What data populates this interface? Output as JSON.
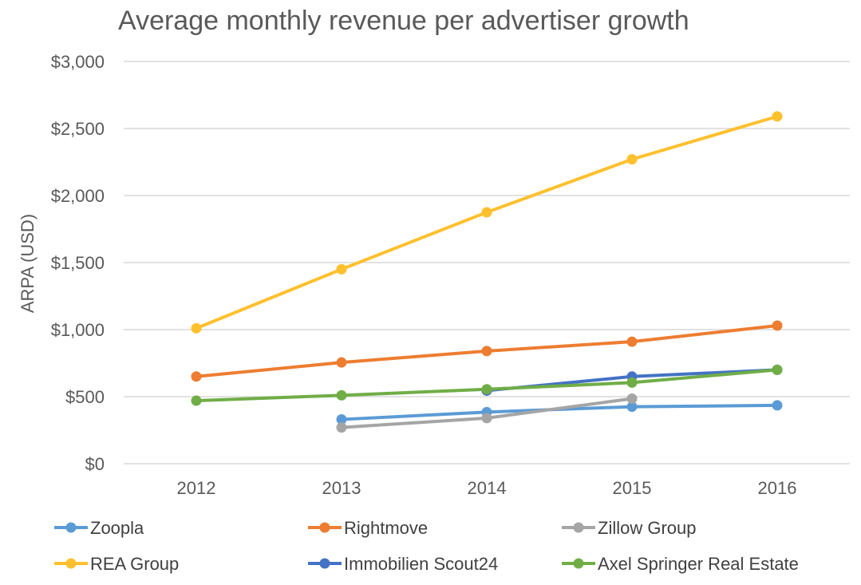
{
  "chart_data": {
    "type": "line",
    "title": "Average monthly revenue per advertiser growth",
    "xlabel": "",
    "ylabel": "ARPA (USD)",
    "categories": [
      "2012",
      "2013",
      "2014",
      "2015",
      "2016"
    ],
    "ylim": [
      0,
      3000
    ],
    "yticks": [
      0,
      500,
      1000,
      1500,
      2000,
      2500,
      3000
    ],
    "ytick_labels": [
      "$0",
      "$500",
      "$1,000",
      "$1,500",
      "$2,000",
      "$2,500",
      "$3,000"
    ],
    "grid": true,
    "legend_position": "bottom",
    "series": [
      {
        "name": "Zoopla",
        "color": "#5b9bd5",
        "values": [
          null,
          330,
          385,
          425,
          435
        ]
      },
      {
        "name": "Rightmove",
        "color": "#ed7d31",
        "values": [
          650,
          755,
          840,
          910,
          1030
        ]
      },
      {
        "name": "Zillow Group",
        "color": "#a5a5a5",
        "values": [
          null,
          270,
          340,
          485,
          null
        ]
      },
      {
        "name": "REA Group",
        "color": "#ffc02d",
        "values": [
          1010,
          1450,
          1875,
          2270,
          2590
        ]
      },
      {
        "name": "Immobilien Scout24",
        "color": "#4472c4",
        "values": [
          null,
          null,
          545,
          650,
          700
        ]
      },
      {
        "name": "Axel Springer Real Estate",
        "color": "#70ad47",
        "values": [
          470,
          510,
          555,
          605,
          700
        ]
      }
    ]
  }
}
